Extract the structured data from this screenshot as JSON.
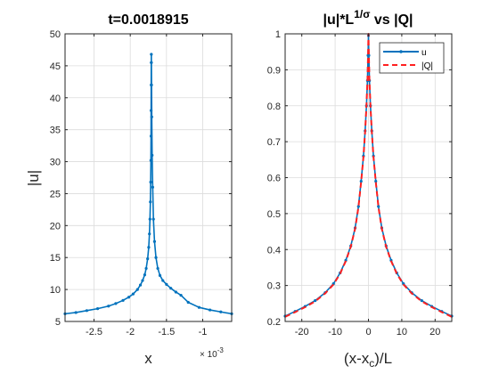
{
  "chart_data": [
    {
      "type": "line",
      "title": "t=0.0018915",
      "xlabel": "x",
      "ylabel": "|u|",
      "x_exponent_label": "× 10",
      "x_exponent_power": "-3",
      "xlim": [
        -2.9,
        -0.6
      ],
      "ylim": [
        5,
        50
      ],
      "xticks": [
        -2.5,
        -2,
        -1.5,
        -1
      ],
      "xtick_labels": [
        "-2.5",
        "-2",
        "-1.5",
        "-1"
      ],
      "yticks": [
        5,
        10,
        15,
        20,
        25,
        30,
        35,
        40,
        45,
        50
      ],
      "grid": true,
      "series": [
        {
          "color": "#0072bd",
          "marker": "dot",
          "x": [
            -2.9,
            -2.75,
            -2.6,
            -2.45,
            -2.3,
            -2.2,
            -2.1,
            -2.02,
            -1.96,
            -1.9,
            -1.86,
            -1.83,
            -1.8,
            -1.78,
            -1.76,
            -1.745,
            -1.735,
            -1.728,
            -1.722,
            -1.718,
            -1.715,
            -1.713,
            -1.712,
            -1.711,
            -1.71,
            -1.709,
            -1.708,
            -1.706,
            -1.703,
            -1.698,
            -1.69,
            -1.68,
            -1.665,
            -1.645,
            -1.62,
            -1.59,
            -1.55,
            -1.5,
            -1.44,
            -1.37,
            -1.3,
            -1.2,
            -1.05,
            -0.9,
            -0.75,
            -0.6
          ],
          "y": [
            6.2,
            6.4,
            6.7,
            7.0,
            7.4,
            7.8,
            8.3,
            8.8,
            9.3,
            10.0,
            10.7,
            11.4,
            12.3,
            13.3,
            14.8,
            16.6,
            18.7,
            21.0,
            23.7,
            26.8,
            30.2,
            34.0,
            38.0,
            42.0,
            45.5,
            46.8,
            45.5,
            42.0,
            37.0,
            31.0,
            26.0,
            21.0,
            17.5,
            15.0,
            13.3,
            12.2,
            11.4,
            10.8,
            10.2,
            9.6,
            9.1,
            8.0,
            7.2,
            6.8,
            6.5,
            6.2
          ]
        }
      ]
    },
    {
      "type": "line",
      "title_main": "|u|*L",
      "title_sup": "1/σ",
      "title_tail": " vs |Q|",
      "xlabel_main": "(x-x",
      "xlabel_sub": "c",
      "xlabel_tail": ")/L",
      "xlim": [
        -25,
        25
      ],
      "ylim": [
        0.2,
        1
      ],
      "xticks": [
        -20,
        -10,
        0,
        10,
        20
      ],
      "yticks": [
        0.2,
        0.3,
        0.4,
        0.5,
        0.6,
        0.7,
        0.8,
        0.9,
        1
      ],
      "ytick_labels": [
        "0.2",
        "0.3",
        "0.4",
        "0.5",
        "0.6",
        "0.7",
        "0.8",
        "0.9",
        "1"
      ],
      "grid": true,
      "legend_position": "top-right",
      "series": [
        {
          "name": "u",
          "color": "#0072bd",
          "style": "solid-dots",
          "x": [
            -25,
            -22,
            -19,
            -16,
            -13,
            -10.5,
            -8.5,
            -6.8,
            -5.3,
            -4,
            -3,
            -2.2,
            -1.5,
            -1,
            -0.6,
            -0.3,
            -0.12,
            0,
            0.12,
            0.3,
            0.6,
            1,
            1.5,
            2.2,
            3,
            4,
            5.3,
            6.8,
            8.5,
            10.5,
            13,
            16,
            19,
            22,
            25
          ],
          "y": [
            0.215,
            0.228,
            0.242,
            0.258,
            0.28,
            0.305,
            0.335,
            0.37,
            0.41,
            0.46,
            0.52,
            0.59,
            0.66,
            0.73,
            0.8,
            0.87,
            0.94,
            0.995,
            0.94,
            0.87,
            0.8,
            0.73,
            0.66,
            0.59,
            0.52,
            0.46,
            0.41,
            0.37,
            0.335,
            0.305,
            0.28,
            0.258,
            0.242,
            0.228,
            0.215
          ]
        },
        {
          "name": "|Q|",
          "color": "#ff2020",
          "style": "dashed",
          "x": [
            -25,
            -22,
            -19,
            -16,
            -13,
            -10.5,
            -8.5,
            -6.8,
            -5.3,
            -4,
            -3,
            -2.2,
            -1.5,
            -1,
            -0.6,
            -0.3,
            -0.12,
            0,
            0.12,
            0.3,
            0.6,
            1,
            1.5,
            2.2,
            3,
            4,
            5.3,
            6.8,
            8.5,
            10.5,
            13,
            16,
            19,
            22,
            25
          ],
          "y": [
            0.213,
            0.226,
            0.24,
            0.256,
            0.278,
            0.303,
            0.333,
            0.368,
            0.408,
            0.458,
            0.518,
            0.588,
            0.658,
            0.728,
            0.8,
            0.87,
            0.94,
            1.0,
            0.94,
            0.87,
            0.8,
            0.728,
            0.658,
            0.588,
            0.518,
            0.458,
            0.408,
            0.368,
            0.333,
            0.303,
            0.278,
            0.256,
            0.24,
            0.226,
            0.213
          ]
        }
      ]
    }
  ]
}
